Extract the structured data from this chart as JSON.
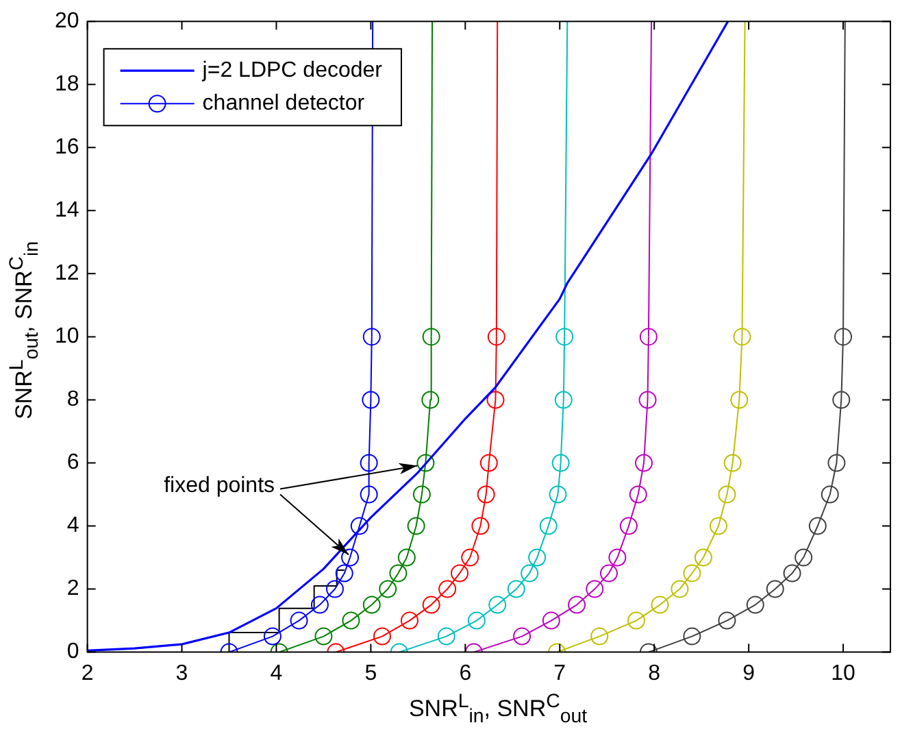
{
  "chart_data": {
    "type": "line",
    "xlabel": "SNR$^{L}$$_{in}$, SNR$^{C}$$_{out}$",
    "ylabel": "SNR$^{L}$$_{out}$, SNR$^{C}$$_{in}$",
    "xlim": [
      2,
      10.5
    ],
    "ylim": [
      0,
      20
    ],
    "xticks": [
      2,
      3,
      4,
      5,
      6,
      7,
      8,
      9,
      10
    ],
    "yticks": [
      0,
      2,
      4,
      6,
      8,
      10,
      12,
      14,
      16,
      18,
      20
    ],
    "grid": false,
    "legend": "top left",
    "annotations": [
      {
        "text": "fixed points",
        "x": 4.78,
        "y": 3
      }
    ],
    "series": [
      {
        "name": "j=2 LDPC decoder",
        "type": "line",
        "marker": "none",
        "color": "#0000ff",
        "x": [
          2,
          2.5,
          3,
          3.5,
          4,
          4.5,
          5,
          5.5,
          6,
          6.32,
          7,
          7.08,
          7.97,
          8.78
        ],
        "values": [
          0.05,
          0.12,
          0.25,
          0.62,
          1.39,
          2.64,
          4.27,
          5.7,
          7.4,
          8.4,
          11.2,
          11.7,
          15.8,
          20
        ]
      },
      {
        "name": "channel detector",
        "type": "line",
        "marker": "circle",
        "color": "#0000ff",
        "x": [
          3.5,
          3.96,
          4.24,
          4.46,
          4.62,
          4.72,
          4.78,
          4.88,
          4.98,
          4.98,
          5.0,
          5.01
        ],
        "values": [
          0,
          0.5,
          1,
          1.5,
          2,
          2.5,
          3,
          4,
          5,
          6,
          8,
          10
        ]
      },
      {
        "type": "line",
        "marker": "circle",
        "color": "#008000",
        "x": [
          4.03,
          4.5,
          4.79,
          5.01,
          5.18,
          5.29,
          5.38,
          5.48,
          5.54,
          5.58,
          5.63,
          5.64
        ],
        "values": [
          0,
          0.5,
          1,
          1.5,
          2,
          2.5,
          3,
          4,
          5,
          6,
          8,
          10
        ]
      },
      {
        "type": "line",
        "marker": "circle",
        "color": "#ff0000",
        "x": [
          4.63,
          5.12,
          5.41,
          5.64,
          5.81,
          5.94,
          6.05,
          6.16,
          6.22,
          6.25,
          6.32,
          6.33
        ],
        "values": [
          0,
          0.5,
          1,
          1.5,
          2,
          2.5,
          3,
          4,
          5,
          6,
          8,
          10
        ]
      },
      {
        "type": "line",
        "marker": "circle",
        "color": "#00bfbf",
        "x": [
          5.3,
          5.8,
          6.12,
          6.34,
          6.54,
          6.68,
          6.76,
          6.88,
          6.98,
          7.01,
          7.04,
          7.05
        ],
        "values": [
          0,
          0.5,
          1,
          1.5,
          2,
          2.5,
          3,
          4,
          5,
          6,
          8,
          10
        ]
      },
      {
        "type": "line",
        "marker": "circle",
        "color": "#bf00bf",
        "x": [
          6.09,
          6.6,
          6.91,
          7.18,
          7.37,
          7.52,
          7.61,
          7.73,
          7.83,
          7.89,
          7.93,
          7.94
        ],
        "values": [
          0,
          0.5,
          1,
          1.5,
          2,
          2.5,
          3,
          4,
          5,
          6,
          8,
          10
        ]
      },
      {
        "type": "line",
        "marker": "circle",
        "color": "#bfbf00",
        "x": [
          6.97,
          7.42,
          7.81,
          8.06,
          8.27,
          8.4,
          8.52,
          8.68,
          8.77,
          8.83,
          8.9,
          8.93
        ],
        "values": [
          0,
          0.5,
          1,
          1.5,
          2,
          2.5,
          3,
          4,
          5,
          6,
          8,
          10
        ]
      },
      {
        "type": "line",
        "marker": "circle",
        "color": "#404040",
        "x": [
          7.94,
          8.4,
          8.77,
          9.07,
          9.28,
          9.46,
          9.58,
          9.73,
          9.86,
          9.93,
          9.98,
          10.0
        ],
        "values": [
          0,
          0.5,
          1,
          1.5,
          2,
          2.5,
          3,
          4,
          5,
          6,
          8,
          10
        ]
      },
      {
        "type": "line",
        "marker": "none",
        "color": "#0000ff",
        "x": [
          5.01,
          5.02
        ],
        "values": [
          10,
          20
        ]
      },
      {
        "type": "line",
        "marker": "none",
        "color": "#008000",
        "x": [
          5.64,
          5.65
        ],
        "values": [
          10,
          20
        ]
      },
      {
        "type": "line",
        "marker": "none",
        "color": "#ff0000",
        "x": [
          6.33,
          6.34
        ],
        "values": [
          10,
          20
        ]
      },
      {
        "type": "line",
        "marker": "none",
        "color": "#00bfbf",
        "x": [
          7.05,
          7.08
        ],
        "values": [
          10,
          20
        ]
      },
      {
        "type": "line",
        "marker": "none",
        "color": "#bf00bf",
        "x": [
          7.94,
          7.97
        ],
        "values": [
          10,
          20
        ]
      },
      {
        "type": "line",
        "marker": "none",
        "color": "#bfbf00",
        "x": [
          8.93,
          8.96
        ],
        "values": [
          10,
          20
        ]
      },
      {
        "type": "line",
        "marker": "none",
        "color": "#404040",
        "x": [
          10.0,
          10.02
        ],
        "values": [
          10,
          20
        ]
      },
      {
        "type": "line",
        "marker": "none",
        "color": "#000000",
        "x": [
          3.5,
          3.5,
          4.03,
          4.03,
          4.4,
          4.4,
          4.64,
          4.64,
          4.72
        ],
        "values": [
          0,
          0.62,
          0.62,
          1.39,
          1.39,
          2.1,
          2.1,
          2.6,
          2.6
        ]
      }
    ]
  }
}
